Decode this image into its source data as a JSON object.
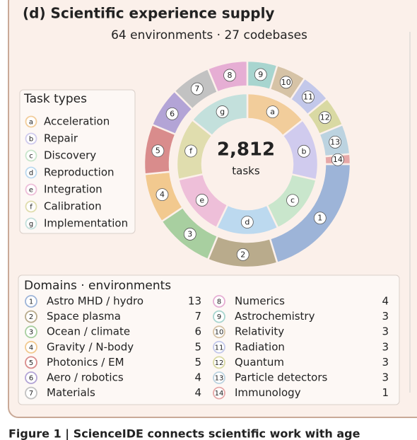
{
  "caption": "Figure 1 | ScienceIDE connects scientific work with age",
  "chart_data": {
    "type": "donut",
    "title": "(d)  Scientific experience supply",
    "subtitle": "64 environments · 27 codebases",
    "total": 2812,
    "total_label": "2,812",
    "total_text": "tasks",
    "rings": [
      {
        "name": "Task types",
        "ids": [
          "a",
          "b",
          "c",
          "d",
          "e",
          "f",
          "g"
        ],
        "categories": [
          "Acceleration",
          "Repair",
          "Discovery",
          "Reproduction",
          "Integration",
          "Calibration",
          "Implementation"
        ],
        "values": [
          402,
          402,
          402,
          402,
          402,
          402,
          400
        ],
        "colors": [
          "#f2cd9b",
          "#d0cbee",
          "#c9e6cc",
          "#bcd9ef",
          "#eebfd9",
          "#e0ddae",
          "#c3e0dc"
        ]
      },
      {
        "name": "Domains · environments",
        "ids": [
          "1",
          "2",
          "3",
          "4",
          "5",
          "6",
          "7",
          "8",
          "9",
          "10",
          "11",
          "12",
          "13",
          "14"
        ],
        "categories": [
          "Astro MHD / hydro",
          "Space plasma",
          "Ocean / climate",
          "Gravity / N-body",
          "Photonics / EM",
          "Aero / robotics",
          "Materials",
          "Numerics",
          "Astrochemistry",
          "Relativity",
          "Radiation",
          "Quantum",
          "Particle detectors",
          "Immunology"
        ],
        "values": [
          13,
          7,
          6,
          5,
          5,
          4,
          4,
          4,
          3,
          3,
          3,
          3,
          3,
          1
        ],
        "colors": [
          "#9db4d8",
          "#b9ab8c",
          "#a8cfa0",
          "#f2c98f",
          "#d98c8c",
          "#b3a4d6",
          "#c2c2c2",
          "#e6aed4",
          "#a8d5cf",
          "#d6c3a6",
          "#c3c8ea",
          "#d9d9a3",
          "#bcd3e0",
          "#e6a8a8"
        ]
      }
    ]
  }
}
